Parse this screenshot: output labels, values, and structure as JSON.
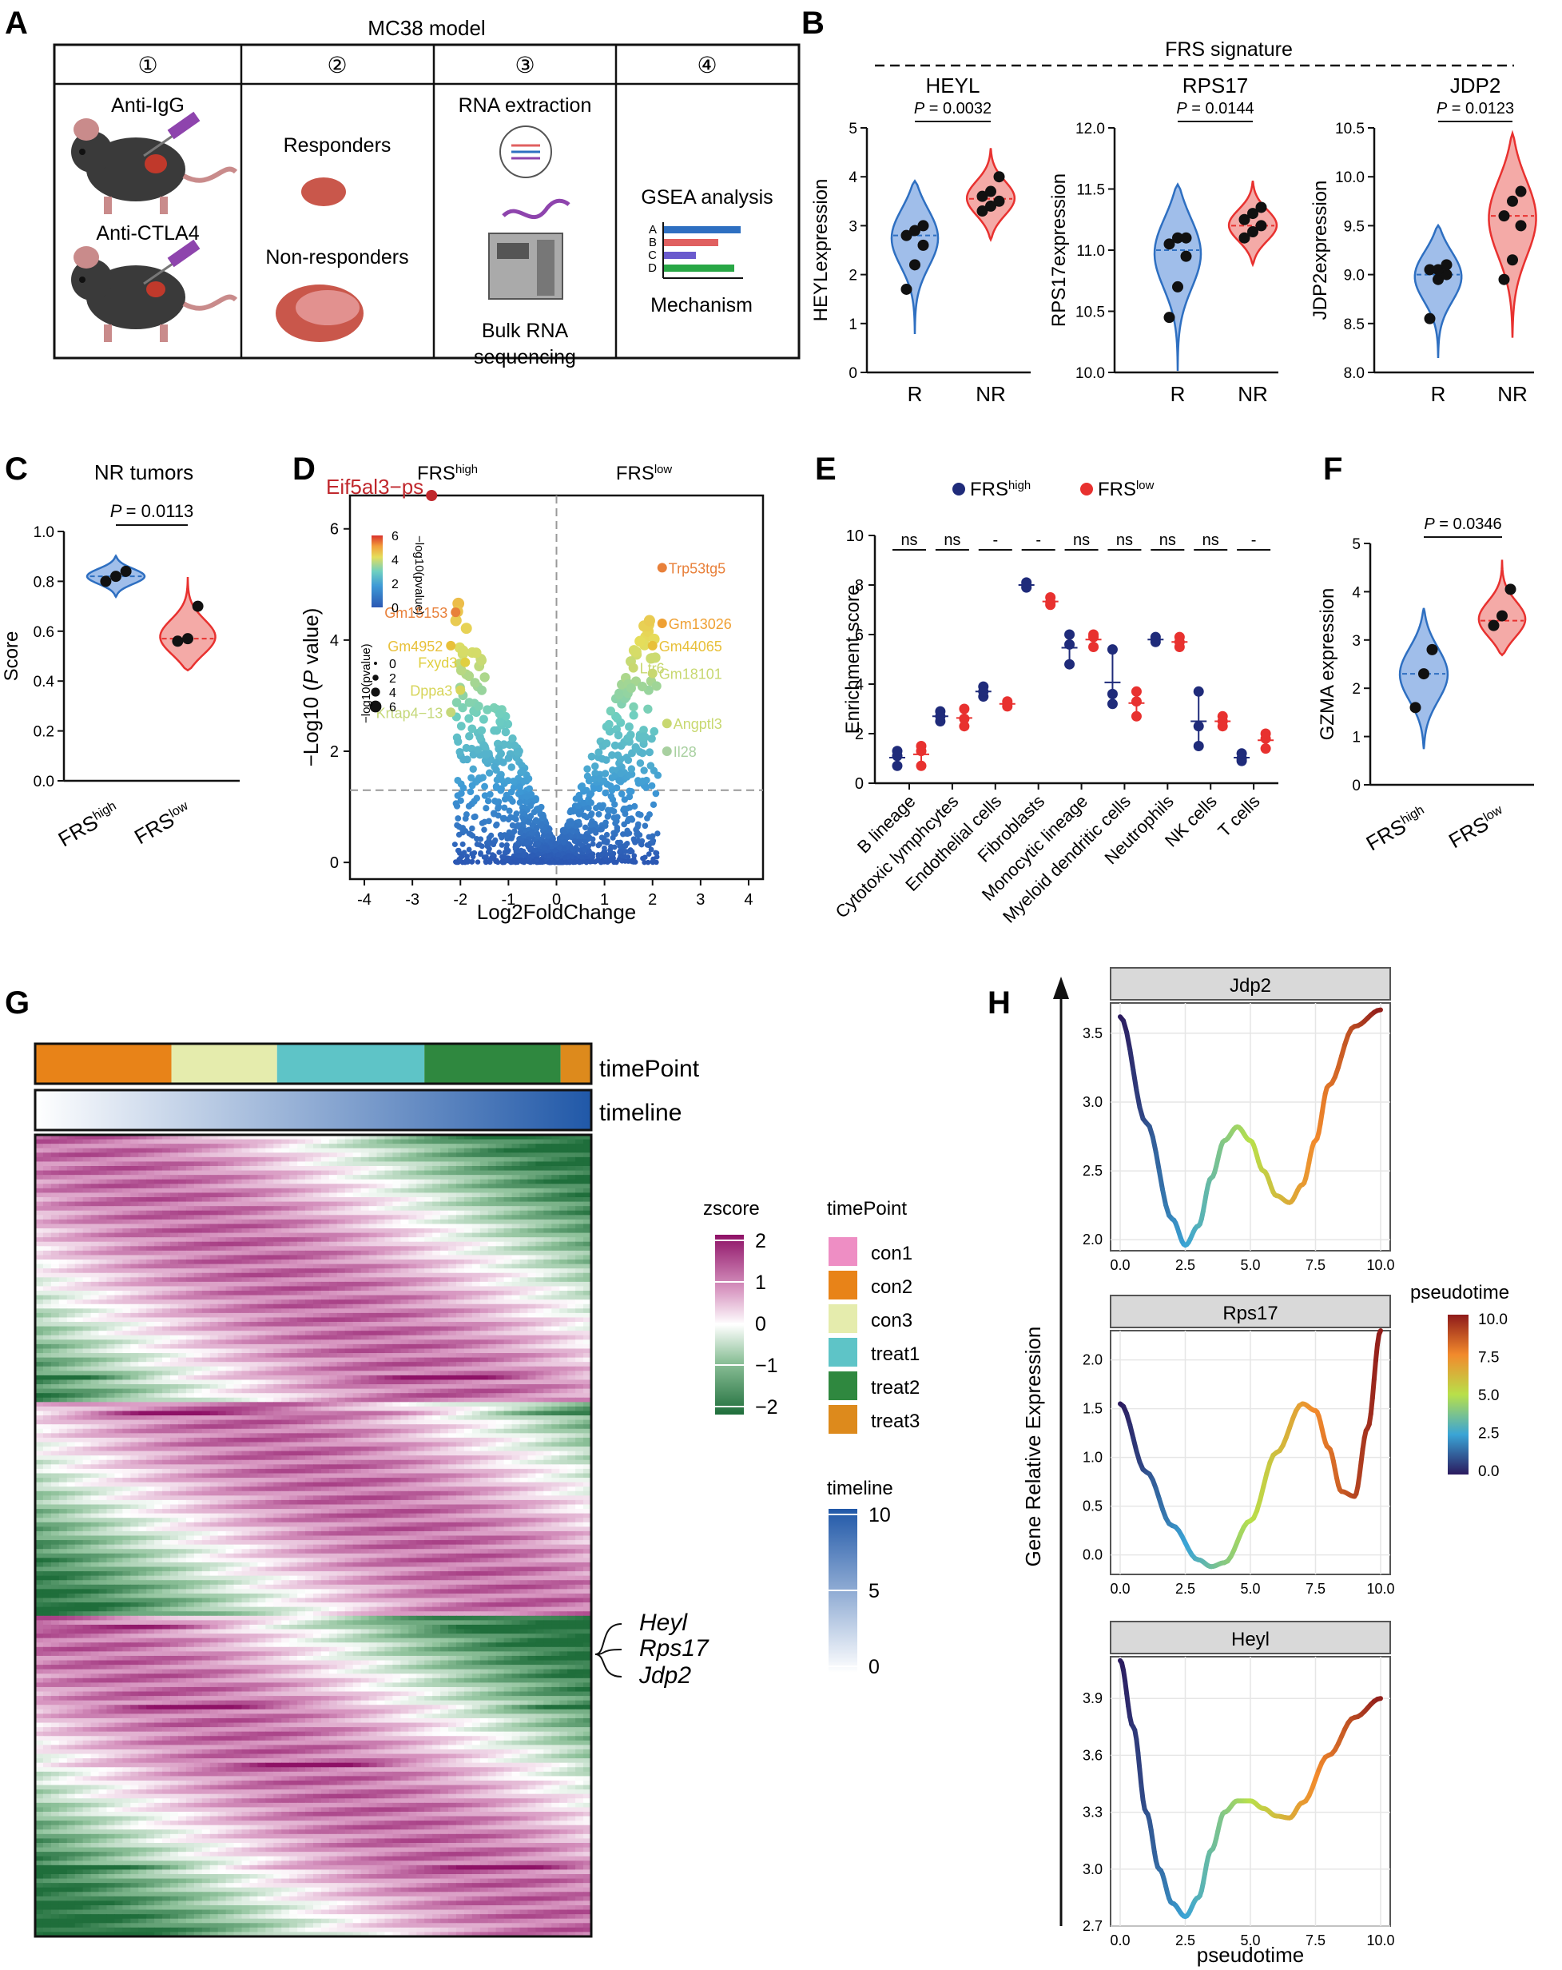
{
  "panels": {
    "A": "A",
    "B": "B",
    "C": "C",
    "D": "D",
    "E": "E",
    "F": "F",
    "G": "G",
    "H": "H"
  },
  "panel_a": {
    "title": "MC38 model",
    "steps": [
      "①",
      "②",
      "③",
      "④"
    ],
    "treatments": [
      "Anti-IgG",
      "Anti-CTLA4"
    ],
    "groups": [
      "Responders",
      "Non-responders"
    ],
    "rna": [
      "RNA extraction",
      "Bulk RNA",
      "sequencing"
    ],
    "gsea": "GSEA analysis",
    "gsea_letters": [
      "A",
      "B",
      "C",
      "D"
    ],
    "mechanism": "Mechanism",
    "colors": {
      "mouse": "#3a3a3a",
      "tumor": "#c0392b",
      "bar_blue": "#2e6fc1",
      "bar_red": "#e06060",
      "bar_purple": "#6a5acd",
      "bar_green": "#28a745"
    }
  },
  "chart_data": [
    {
      "id": "B-HEYL",
      "type": "violin",
      "header": "FRS signature",
      "title": "HEYL",
      "ylabel": "HEYLexpression",
      "categories": [
        "R",
        "NR"
      ],
      "ylim": [
        0,
        5
      ],
      "yticks": [
        0,
        1,
        2,
        3,
        4,
        5
      ],
      "pvalue": "P = 0.0032",
      "points": [
        [
          1.7,
          2.2,
          2.6,
          2.8,
          2.9,
          3.0
        ],
        [
          3.3,
          3.4,
          3.5,
          3.6,
          3.7,
          4.0
        ]
      ],
      "medians": [
        2.8,
        3.55
      ],
      "colors": [
        "#2e6fc1",
        "#e8312f"
      ]
    },
    {
      "id": "B-RPS17",
      "type": "violin",
      "title": "RPS17",
      "ylabel": "RPS17expression",
      "categories": [
        "R",
        "NR"
      ],
      "ylim": [
        10.0,
        12.0
      ],
      "yticks": [
        10.0,
        10.5,
        11.0,
        11.5,
        12.0
      ],
      "pvalue": "P = 0.0144",
      "points": [
        [
          10.45,
          10.7,
          10.95,
          11.05,
          11.1,
          11.1
        ],
        [
          11.1,
          11.15,
          11.2,
          11.25,
          11.3,
          11.35
        ]
      ],
      "medians": [
        11.0,
        11.2
      ],
      "colors": [
        "#2e6fc1",
        "#e8312f"
      ]
    },
    {
      "id": "B-JDP2",
      "type": "violin",
      "title": "JDP2",
      "ylabel": "JDP2expression",
      "categories": [
        "R",
        "NR"
      ],
      "ylim": [
        8.0,
        10.5
      ],
      "yticks": [
        8.0,
        8.5,
        9.0,
        9.5,
        10.0,
        10.5
      ],
      "pvalue": "P = 0.0123",
      "points": [
        [
          8.55,
          8.95,
          9.0,
          9.05,
          9.05,
          9.1
        ],
        [
          8.95,
          9.15,
          9.5,
          9.6,
          9.75,
          9.85
        ]
      ],
      "medians": [
        9.0,
        9.6
      ],
      "colors": [
        "#2e6fc1",
        "#e8312f"
      ]
    },
    {
      "id": "C",
      "type": "violin",
      "title": "NR tumors",
      "ylabel": "Score",
      "categories": [
        "FRS",
        "FRS"
      ],
      "cat_sup": [
        "high",
        "low"
      ],
      "ylim": [
        0,
        1.0
      ],
      "yticks": [
        0.0,
        0.2,
        0.4,
        0.6,
        0.8,
        1.0
      ],
      "pvalue": "= 0.0113",
      "p_letter": "P",
      "points": [
        [
          0.8,
          0.82,
          0.84
        ],
        [
          0.56,
          0.57,
          0.7
        ]
      ],
      "medians": [
        0.82,
        0.57
      ],
      "colors": [
        "#2e6fc1",
        "#e8312f"
      ]
    },
    {
      "id": "D",
      "type": "scatter",
      "title_left": "FRS",
      "title_left_sup": "high",
      "title_right": "FRS",
      "title_right_sup": "low",
      "xlabel": "Log2FoldChange",
      "ylabel_pre": "−Log10 (",
      "ylabel_it": "P",
      "ylabel_post": " value)",
      "xlim": [
        -4.3,
        4.3
      ],
      "ylim": [
        -0.3,
        6.6
      ],
      "xticks": [
        -4,
        -3,
        -2,
        -1,
        0,
        1,
        2,
        3,
        4
      ],
      "yticks": [
        0,
        2,
        4,
        6
      ],
      "hline": 1.3,
      "legend_title": "−log10(pvalue)",
      "legend_ticks": [
        0,
        2,
        4,
        6
      ],
      "size_legend_title": "−log10(pvalue)",
      "size_ticks": [
        0,
        2,
        4,
        6
      ],
      "labels": [
        {
          "name": "Eif5al3−ps",
          "x": -2.6,
          "y": 6.6,
          "color": "#c0282d",
          "big": true
        },
        {
          "name": "Trp53tg5",
          "x": 2.2,
          "y": 5.3,
          "color": "#e8803a"
        },
        {
          "name": "Gm15153",
          "x": -2.1,
          "y": 4.5,
          "color": "#e8803a"
        },
        {
          "name": "Gm13026",
          "x": 2.2,
          "y": 4.3,
          "color": "#efa033"
        },
        {
          "name": "Gm4952",
          "x": -2.2,
          "y": 3.9,
          "color": "#e8c03a"
        },
        {
          "name": "Fxyd3",
          "x": -1.9,
          "y": 3.6,
          "color": "#e0cf40"
        },
        {
          "name": "Gm44065",
          "x": 2.0,
          "y": 3.9,
          "color": "#e8c03a"
        },
        {
          "name": "Dppa3",
          "x": -2.0,
          "y": 3.1,
          "color": "#d7d55a"
        },
        {
          "name": "Krtap4−13",
          "x": -2.2,
          "y": 2.7,
          "color": "#c5d87a"
        },
        {
          "name": "Gm18101",
          "x": 2.0,
          "y": 3.4,
          "color": "#c8d870"
        },
        {
          "name": "Angptl3",
          "x": 2.3,
          "y": 2.5,
          "color": "#c8d870"
        },
        {
          "name": "Ltr6",
          "x": 1.6,
          "y": 3.5,
          "color": "#c8d870"
        },
        {
          "name": "Il28",
          "x": 2.3,
          "y": 2.0,
          "color": "#a8d0a0"
        }
      ],
      "gradient": [
        "#2b57b3",
        "#3e9ad6",
        "#6fcfc0",
        "#e5de5b",
        "#f29f3b",
        "#d9312b"
      ]
    },
    {
      "id": "E",
      "type": "dotplot",
      "ylabel": "Enrichment score",
      "ylim": [
        0,
        10
      ],
      "yticks": [
        0,
        2,
        4,
        6,
        8,
        10
      ],
      "legend": [
        {
          "name": "FRS",
          "sup": "high",
          "color": "#1f2b7a"
        },
        {
          "name": "FRS",
          "sup": "low",
          "color": "#e8312f"
        }
      ],
      "categories": [
        "B lineage",
        "Cytotoxic lymphcytes",
        "Endothelial cells",
        "Fibroblasts",
        "Monocytic lineage",
        "Myeloid dendritic cells",
        "Neutrophils",
        "NK cells",
        "T cells"
      ],
      "sig": [
        "ns",
        "ns",
        "-",
        "-",
        "ns",
        "ns",
        "ns",
        "ns",
        "-"
      ],
      "high": [
        [
          0.7,
          1.1,
          1.3
        ],
        [
          2.5,
          2.7,
          2.9
        ],
        [
          3.5,
          3.7,
          3.9
        ],
        [
          7.9,
          8.0,
          8.1
        ],
        [
          4.8,
          5.6,
          6.0
        ],
        [
          3.2,
          3.6,
          5.4
        ],
        [
          5.7,
          5.8,
          5.9
        ],
        [
          1.5,
          2.3,
          3.7
        ],
        [
          0.9,
          1.0,
          1.2
        ]
      ],
      "low": [
        [
          0.7,
          1.3,
          1.5
        ],
        [
          2.3,
          2.6,
          3.0
        ],
        [
          3.1,
          3.2,
          3.3
        ],
        [
          7.2,
          7.3,
          7.5
        ],
        [
          5.5,
          5.9,
          6.0
        ],
        [
          2.7,
          3.3,
          3.7
        ],
        [
          5.5,
          5.7,
          5.9
        ],
        [
          2.3,
          2.5,
          2.7
        ],
        [
          1.4,
          1.8,
          2.0
        ]
      ]
    },
    {
      "id": "F",
      "type": "violin",
      "ylabel": "GZMA expression",
      "categories": [
        "FRS",
        "FRS"
      ],
      "cat_sup": [
        "high",
        "low"
      ],
      "ylim": [
        0,
        5
      ],
      "yticks": [
        0,
        1,
        2,
        3,
        4,
        5
      ],
      "pvalue": "P = 0.0346",
      "points": [
        [
          1.6,
          2.3,
          2.8
        ],
        [
          3.3,
          3.5,
          4.05
        ]
      ],
      "medians": [
        2.3,
        3.4
      ],
      "colors": [
        "#2e6fc1",
        "#e8312f"
      ]
    },
    {
      "id": "G",
      "type": "heatmap",
      "bars": [
        "timePoint",
        "timeline"
      ],
      "timepoint_segments": [
        {
          "label": "con2",
          "frac": 0.245
        },
        {
          "label": "con3",
          "frac": 0.19
        },
        {
          "label": "treat1",
          "frac": 0.265
        },
        {
          "label": "treat2",
          "frac": 0.245
        },
        {
          "label": "treat3",
          "frac": 0.055
        }
      ],
      "zscore_legend": {
        "title": "zscore",
        "ticks": [
          2,
          1,
          0,
          -1,
          -2
        ]
      },
      "timepoint_legend": {
        "title": "timePoint",
        "items": [
          {
            "label": "con1",
            "color": "#ee8ec4"
          },
          {
            "label": "con2",
            "color": "#e88318"
          },
          {
            "label": "con3",
            "color": "#e5ecad"
          },
          {
            "label": "treat1",
            "color": "#5ec4c7"
          },
          {
            "label": "treat2",
            "color": "#2f883f"
          },
          {
            "label": "treat3",
            "color": "#dd8a1c"
          }
        ]
      },
      "timeline_legend": {
        "title": "timeline",
        "ticks": [
          10,
          5,
          0
        ]
      },
      "genes": [
        "Heyl",
        "Rps17",
        "Jdp2"
      ]
    },
    {
      "id": "H",
      "type": "line",
      "xlabel": "pseudotime",
      "ylabel": "Gene Relative Expression",
      "color_legend": "pseudotime",
      "color_ticks": [
        10.0,
        7.5,
        5.0,
        2.5,
        0.0
      ],
      "xticks": [
        0.0,
        2.5,
        5.0,
        7.5,
        10.0
      ],
      "facets": [
        {
          "title": "Jdp2",
          "ylim": [
            1.92,
            3.72
          ],
          "yticks": [
            2.0,
            2.5,
            3.0,
            3.5
          ],
          "x": [
            0,
            1,
            2,
            2.5,
            3,
            3.5,
            4,
            4.5,
            5,
            5.5,
            6,
            6.5,
            7,
            7.5,
            8,
            9,
            10
          ],
          "y": [
            3.62,
            2.85,
            2.15,
            1.96,
            2.1,
            2.45,
            2.72,
            2.82,
            2.72,
            2.5,
            2.32,
            2.27,
            2.4,
            2.72,
            3.12,
            3.55,
            3.67
          ]
        },
        {
          "title": "Rps17",
          "ylim": [
            -0.2,
            2.3
          ],
          "yticks": [
            0.0,
            0.5,
            1.0,
            1.5,
            2.0
          ],
          "x": [
            0,
            1,
            2,
            3,
            3.5,
            4,
            5,
            6,
            7,
            7.5,
            8,
            8.5,
            9,
            9.5,
            10
          ],
          "y": [
            1.55,
            0.85,
            0.3,
            -0.05,
            -0.12,
            -0.08,
            0.35,
            1.05,
            1.55,
            1.48,
            1.1,
            0.65,
            0.6,
            1.3,
            2.3
          ]
        },
        {
          "title": "Heyl",
          "ylim": [
            2.7,
            4.12
          ],
          "yticks": [
            2.7,
            3.0,
            3.3,
            3.6,
            3.9
          ],
          "x": [
            0,
            0.5,
            1,
            1.5,
            2,
            2.5,
            3,
            3.5,
            4,
            4.5,
            5,
            5.5,
            6,
            6.5,
            7,
            8,
            9,
            10
          ],
          "y": [
            4.1,
            3.75,
            3.3,
            3.0,
            2.82,
            2.75,
            2.85,
            3.1,
            3.3,
            3.36,
            3.36,
            3.32,
            3.28,
            3.27,
            3.35,
            3.6,
            3.8,
            3.9
          ]
        }
      ]
    }
  ]
}
